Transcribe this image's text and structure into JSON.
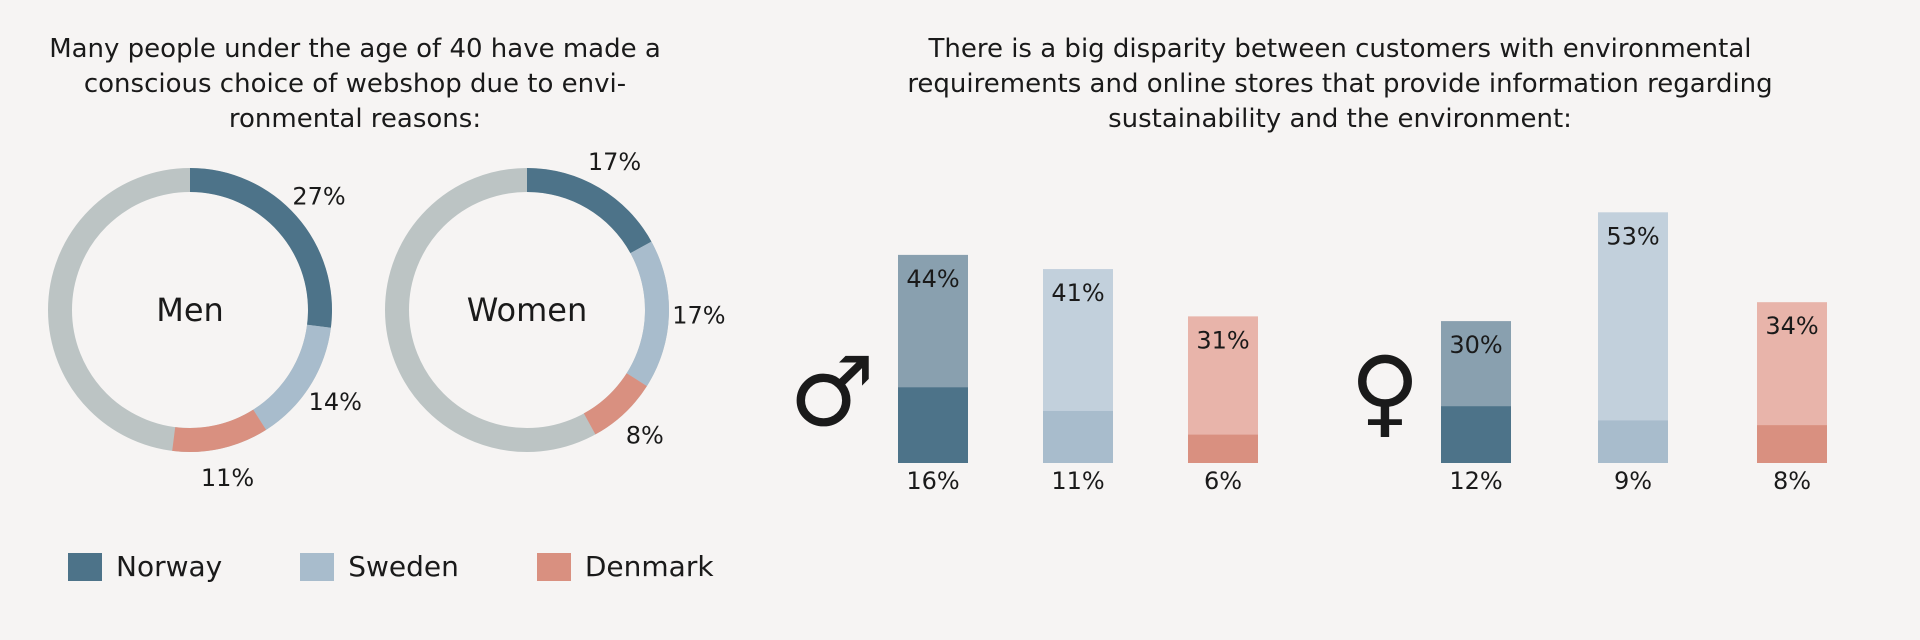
{
  "left_title": "Many people under the age of 40 have made a conscious choice of webshop due to envi-ronmental reasons:",
  "right_title": "There is a big disparity between customers with environmental requirements and online stores that provide information regarding sustainability and the environment:",
  "colors": {
    "norway": "#4d7389",
    "sweden": "#a8bccc",
    "denmark": "#d99080",
    "ring_rest": "#bcc4c4",
    "norway_light": "#89a0af",
    "sweden_light": "#c2d0dc",
    "denmark_light": "#e8b4aa"
  },
  "legend": [
    {
      "label": "Norway",
      "color": "#4d7389"
    },
    {
      "label": "Sweden",
      "color": "#a8bccc"
    },
    {
      "label": "Denmark",
      "color": "#d99080"
    }
  ],
  "chart_data": [
    {
      "type": "pie",
      "center_label": "Men",
      "slices": [
        {
          "name": "Norway",
          "value": 27,
          "label": "27%"
        },
        {
          "name": "Sweden",
          "value": 14,
          "label": "14%"
        },
        {
          "name": "Denmark",
          "value": 11,
          "label": "11%"
        }
      ]
    },
    {
      "type": "pie",
      "center_label": "Women",
      "slices": [
        {
          "name": "Norway",
          "value": 17,
          "label": "17%"
        },
        {
          "name": "Sweden",
          "value": 17,
          "label": "17%"
        },
        {
          "name": "Denmark",
          "value": 8,
          "label": "8%"
        }
      ]
    },
    {
      "type": "bar",
      "group_symbol": "♂",
      "categories": [
        "Norway",
        "Sweden",
        "Denmark"
      ],
      "series": [
        {
          "values": [
            44,
            41,
            31
          ],
          "labels": [
            "44%",
            "41%",
            "31%"
          ]
        },
        {
          "values": [
            16,
            11,
            6
          ],
          "labels": [
            "16%",
            "11%",
            "6%"
          ]
        }
      ],
      "ylim": [
        0,
        55
      ]
    },
    {
      "type": "bar",
      "group_symbol": "♀",
      "categories": [
        "Norway",
        "Sweden",
        "Denmark"
      ],
      "series": [
        {
          "values": [
            30,
            53,
            34
          ],
          "labels": [
            "30%",
            "53%",
            "34%"
          ]
        },
        {
          "values": [
            12,
            9,
            8
          ],
          "labels": [
            "12%",
            "9%",
            "8%"
          ]
        }
      ],
      "ylim": [
        0,
        55
      ]
    }
  ]
}
